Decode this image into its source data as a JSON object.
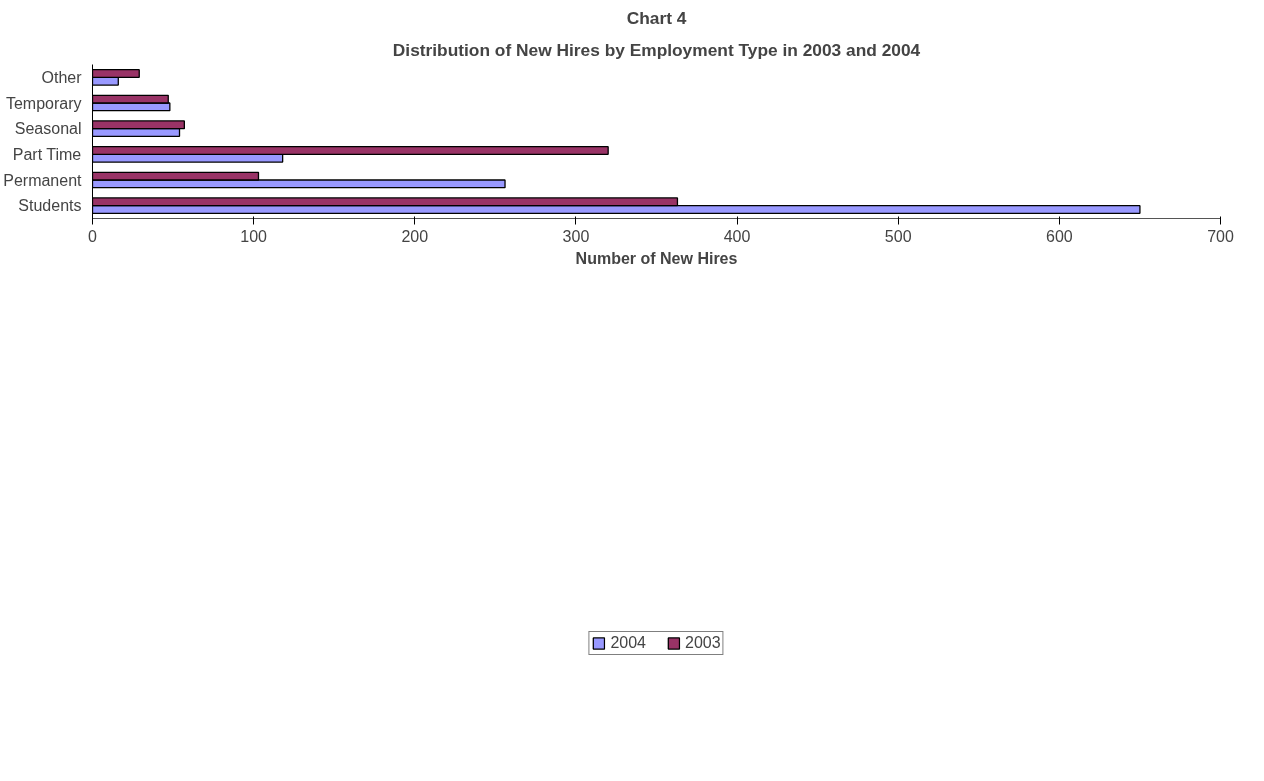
{
  "chart_data": {
    "type": "bar",
    "orientation": "horizontal",
    "title": "Chart 4",
    "subtitle": "Distribution of New Hires by Employment Type in 2003 and 2004",
    "xlabel": "Number of New Hires",
    "categories": [
      "Other",
      "Temporary",
      "Seasonal",
      "Part Time",
      "Permanent",
      "Students"
    ],
    "series": [
      {
        "name": "2004",
        "color": "#9999ff",
        "values": [
          16,
          48,
          54,
          118,
          256,
          650
        ]
      },
      {
        "name": "2003",
        "color": "#993366",
        "values": [
          29,
          47,
          57,
          320,
          103,
          363
        ]
      }
    ],
    "xlim": [
      0,
      700
    ],
    "xticks": [
      0,
      100,
      200,
      300,
      400,
      500,
      600,
      700
    ],
    "grid": false,
    "legend": "bottom"
  }
}
